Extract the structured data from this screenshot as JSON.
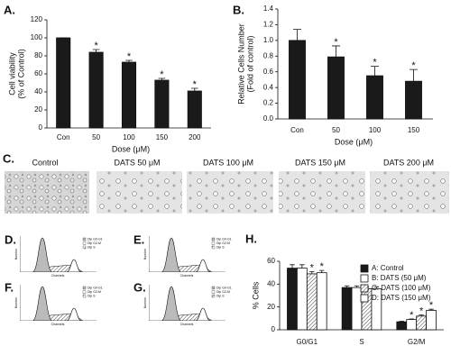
{
  "chart_data": [
    {
      "type": "bar",
      "panel": "A.",
      "y_label": [
        "Cell viability",
        "(% of Control)"
      ],
      "x_label": "Dose (μM)",
      "categories": [
        "Con",
        "50",
        "100",
        "150",
        "200"
      ],
      "values": [
        100,
        84,
        73,
        53,
        41
      ],
      "errors": [
        0,
        3,
        2,
        2,
        3
      ],
      "color": "#1a1a1a",
      "ylim": [
        0,
        120
      ],
      "yticks": [
        0,
        20,
        40,
        60,
        80,
        100,
        120
      ],
      "significance_mark": "*",
      "significant": [
        false,
        true,
        true,
        true,
        true
      ]
    },
    {
      "type": "bar",
      "panel": "B.",
      "y_label": [
        "Relative Cells Number",
        "(Fold of control)"
      ],
      "x_label": "Dose (μM)",
      "categories": [
        "Con",
        "50",
        "100",
        "150"
      ],
      "values": [
        1.0,
        0.79,
        0.55,
        0.48
      ],
      "errors": [
        0.14,
        0.14,
        0.12,
        0.15
      ],
      "color": "#1a1a1a",
      "ylim": [
        0,
        1.4
      ],
      "yticks": [
        {
          "value": 0,
          "label": "0.0"
        },
        0.2,
        0.4,
        0.6,
        0.8,
        {
          "value": 1,
          "label": "1.0"
        },
        1.2,
        1.4
      ],
      "significance_mark": "*",
      "significant": [
        false,
        true,
        true,
        true
      ]
    },
    {
      "type": "grouped_bar",
      "panel": "H.",
      "y_label": [
        "% Cells"
      ],
      "categories": [
        "G0/G1",
        "S",
        "G2/M"
      ],
      "ylim": [
        0,
        60
      ],
      "yticks": [
        0,
        20,
        40,
        60
      ],
      "significance_mark": "*",
      "series": [
        {
          "name": "A: Control",
          "color": "#1a1a1a",
          "hatch": false,
          "values": [
            54,
            37,
            7
          ],
          "errors": [
            3,
            1.5,
            0.5
          ],
          "significant": [
            false,
            false,
            false
          ]
        },
        {
          "name": "B: DATS (50 μM)",
          "color": "#ffffff",
          "hatch": false,
          "values": [
            54,
            37,
            9
          ],
          "errors": [
            3,
            1.5,
            0.5
          ],
          "significant": [
            false,
            false,
            true
          ]
        },
        {
          "name": "C: DATS (100 μM)",
          "color": "#ffffff",
          "hatch": true,
          "values": [
            49,
            36,
            12
          ],
          "errors": [
            2,
            1.5,
            1
          ],
          "significant": [
            true,
            false,
            true
          ]
        },
        {
          "name": "D: DATS (150 μM)",
          "color": "#ffffff",
          "hatch": false,
          "values": [
            50,
            36,
            17
          ],
          "errors": [
            2,
            1.5,
            1
          ],
          "significant": [
            true,
            false,
            true
          ]
        }
      ]
    }
  ],
  "micrographs": {
    "panel": "C.",
    "captions": [
      "Control",
      "DATS 50 μM",
      "DATS 100 μM",
      "DATS 150 μM",
      "DATS 200 μM"
    ]
  },
  "histograms": {
    "panels": [
      "D.",
      "E.",
      "F.",
      "G."
    ],
    "legend": [
      "Dip G0-G1",
      "Dip G2-M",
      "Dip S"
    ],
    "x_label": "Channels",
    "y_label": "Number"
  }
}
